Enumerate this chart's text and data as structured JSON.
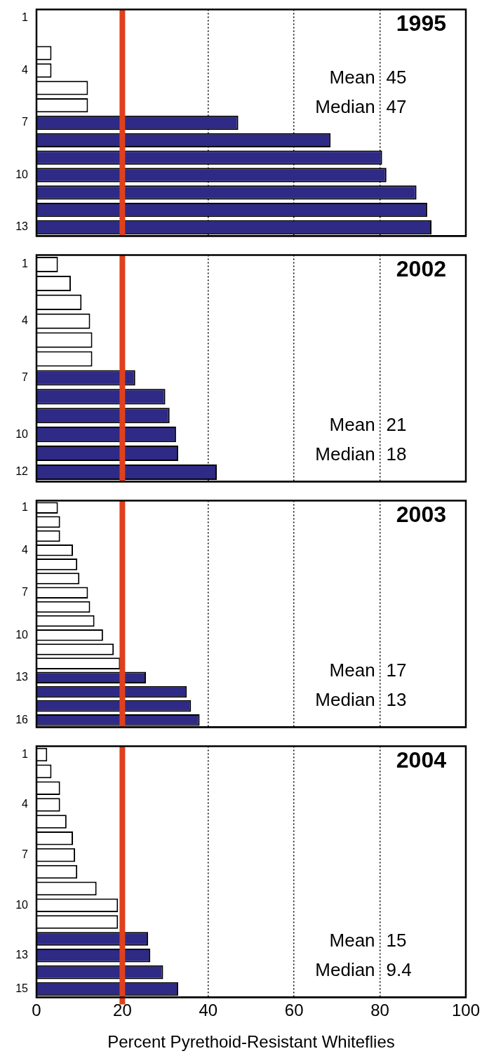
{
  "chart_data": [
    {
      "type": "bar",
      "orientation": "horizontal",
      "title": "1995",
      "annotations": [
        "Mean   45",
        "Median  47"
      ],
      "categories": [
        "1",
        null,
        null,
        "4",
        null,
        null,
        "7",
        null,
        null,
        "10",
        null,
        null,
        "13"
      ],
      "values": [
        0,
        0,
        3.5,
        3.5,
        12,
        12,
        47,
        68.5,
        80.5,
        81.5,
        88.5,
        91,
        92
      ],
      "colors": [
        "#ffffff",
        "#ffffff",
        "#ffffff",
        "#ffffff",
        "#ffffff",
        "#ffffff",
        "#2e2a86",
        "#2e2a86",
        "#2e2a86",
        "#2e2a86",
        "#2e2a86",
        "#2e2a86",
        "#2e2a86"
      ],
      "xlim": [
        0,
        100
      ],
      "xticks": [
        0,
        20,
        40,
        60,
        80,
        100
      ],
      "grid": "x",
      "tick_labels": "y",
      "ref_lines": [
        {
          "axis": "x",
          "value": 20,
          "color": "#e0401c"
        }
      ]
    },
    {
      "type": "bar",
      "orientation": "horizontal",
      "title": "2002",
      "annotations": [
        "Mean   21",
        "Median  18"
      ],
      "categories": [
        "1",
        null,
        null,
        "4",
        null,
        null,
        "7",
        null,
        null,
        "10",
        null,
        "12"
      ],
      "values": [
        5,
        8,
        10.5,
        12.5,
        13,
        13,
        23,
        30,
        31,
        32.5,
        33,
        42
      ],
      "colors": [
        "#ffffff",
        "#ffffff",
        "#ffffff",
        "#ffffff",
        "#ffffff",
        "#ffffff",
        "#2e2a86",
        "#2e2a86",
        "#2e2a86",
        "#2e2a86",
        "#2e2a86",
        "#2e2a86"
      ],
      "xlim": [
        0,
        100
      ],
      "xticks": [
        0,
        20,
        40,
        60,
        80,
        100
      ],
      "grid": "x",
      "tick_labels": "y",
      "ref_lines": [
        {
          "axis": "x",
          "value": 20,
          "color": "#e0401c"
        }
      ]
    },
    {
      "type": "bar",
      "orientation": "horizontal",
      "title": "2003",
      "annotations": [
        "Mean   17",
        "Median  13"
      ],
      "categories": [
        "1",
        null,
        null,
        "4",
        null,
        null,
        "7",
        null,
        null,
        "10",
        null,
        null,
        "13",
        null,
        null,
        "16"
      ],
      "values": [
        5,
        5.5,
        5.5,
        8.5,
        9.5,
        10,
        12,
        12.5,
        13.5,
        15.5,
        18,
        19.5,
        25.5,
        35,
        36,
        38
      ],
      "colors": [
        "#ffffff",
        "#ffffff",
        "#ffffff",
        "#ffffff",
        "#ffffff",
        "#ffffff",
        "#ffffff",
        "#ffffff",
        "#ffffff",
        "#ffffff",
        "#ffffff",
        "#ffffff",
        "#2e2a86",
        "#2e2a86",
        "#2e2a86",
        "#2e2a86"
      ],
      "xlim": [
        0,
        100
      ],
      "xticks": [
        0,
        20,
        40,
        60,
        80,
        100
      ],
      "grid": "x",
      "tick_labels": "y",
      "ref_lines": [
        {
          "axis": "x",
          "value": 20,
          "color": "#e0401c"
        }
      ]
    },
    {
      "type": "bar",
      "orientation": "horizontal",
      "title": "2004",
      "annotations": [
        "Mean   15",
        "Median  9.4"
      ],
      "xlabel": "Percent Pyrethoid-Resistant Whiteflies",
      "categories": [
        "1",
        null,
        null,
        "4",
        null,
        null,
        "7",
        null,
        null,
        "10",
        null,
        null,
        "13",
        null,
        "15"
      ],
      "values": [
        2.5,
        3.5,
        5.5,
        5.5,
        7,
        8.5,
        9,
        9.5,
        14,
        19,
        19,
        26,
        26.5,
        29.5,
        33
      ],
      "colors": [
        "#ffffff",
        "#ffffff",
        "#ffffff",
        "#ffffff",
        "#ffffff",
        "#ffffff",
        "#ffffff",
        "#ffffff",
        "#ffffff",
        "#ffffff",
        "#ffffff",
        "#2e2a86",
        "#2e2a86",
        "#2e2a86",
        "#2e2a86"
      ],
      "xlim": [
        0,
        100
      ],
      "xticks": [
        0,
        20,
        40,
        60,
        80,
        100
      ],
      "grid": "x",
      "ref_lines": [
        {
          "axis": "x",
          "value": 20,
          "color": "#e0401c"
        }
      ]
    }
  ]
}
